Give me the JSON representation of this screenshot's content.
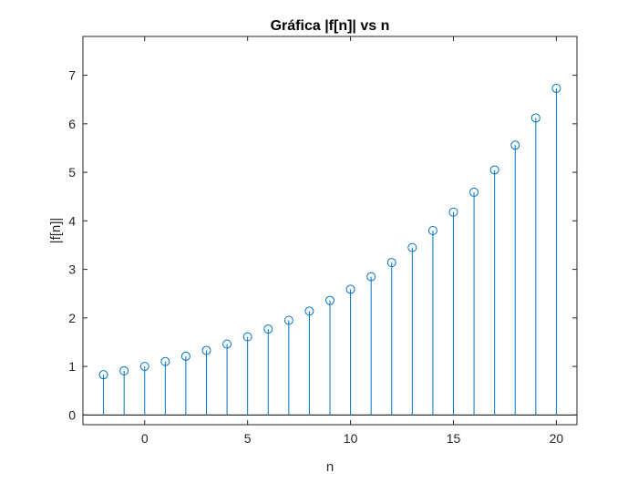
{
  "chart_data": {
    "type": "stem",
    "title": "Gráfica |f[n]| vs n",
    "xlabel": "n",
    "ylabel": "|f[n]|",
    "xlim": [
      -3,
      21
    ],
    "ylim": [
      -0.2,
      7.8
    ],
    "xticks": [
      0,
      5,
      10,
      15,
      20
    ],
    "yticks": [
      0,
      1,
      2,
      3,
      4,
      5,
      6,
      7
    ],
    "grid": false,
    "series": [
      {
        "color": "#0072bd",
        "marker": "circle",
        "x": [
          -2,
          -1,
          0,
          1,
          2,
          3,
          4,
          5,
          6,
          7,
          8,
          9,
          10,
          11,
          12,
          13,
          14,
          15,
          16,
          17,
          18,
          19,
          20
        ],
        "y": [
          0.83,
          0.91,
          1.0,
          1.1,
          1.21,
          1.33,
          1.46,
          1.61,
          1.77,
          1.95,
          2.14,
          2.36,
          2.59,
          2.85,
          3.14,
          3.45,
          3.8,
          4.18,
          4.59,
          5.05,
          5.56,
          6.12,
          6.73
        ]
      }
    ],
    "baseline": 0,
    "colors": {
      "stem": "#0072bd",
      "axes": "#262626",
      "baseline": "#000000"
    }
  }
}
